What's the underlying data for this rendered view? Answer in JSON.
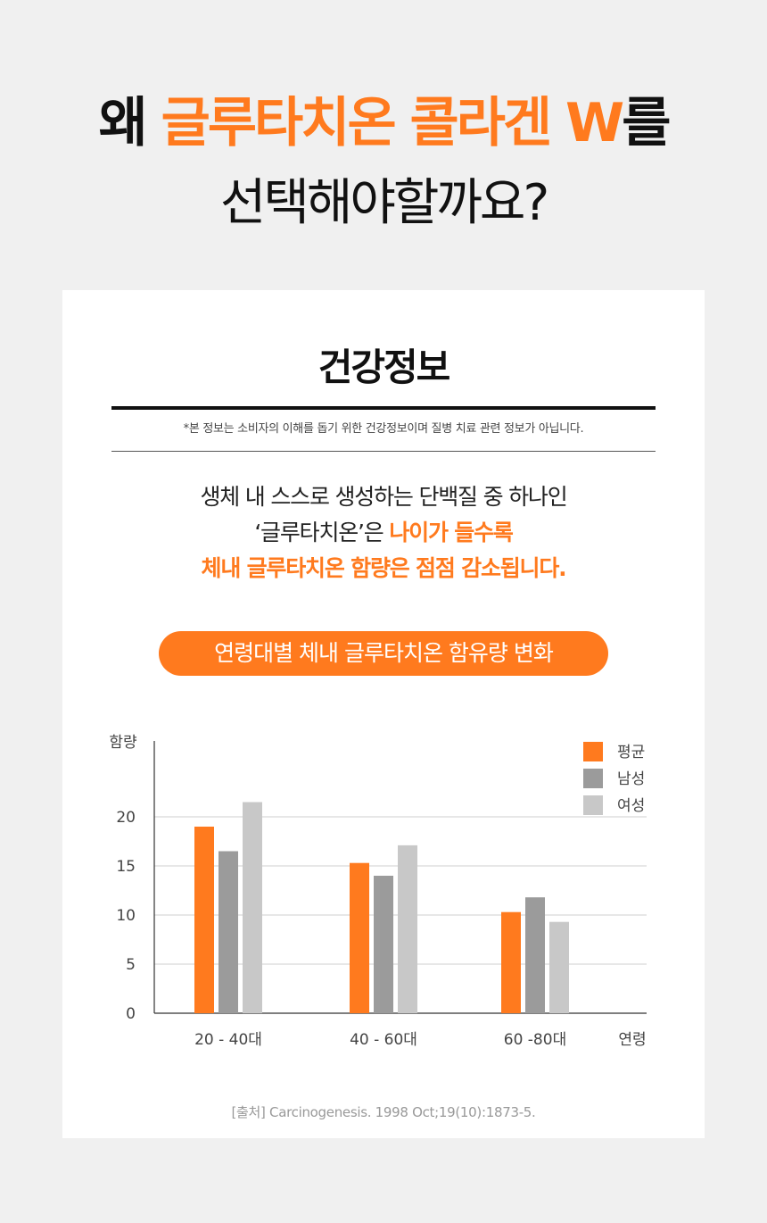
{
  "headline": {
    "line1_prefix": "왜 ",
    "line1_accent": "글루타치온 콜라겐 W",
    "line1_suffix": "를",
    "line2": "선택해야할까요?"
  },
  "card": {
    "title": "건강정보",
    "disclaimer": "*본 정보는 소비자의 이해를 돕기 위한 건강정보이며 질병 치료 관련 정보가 아닙니다.",
    "intro_line1": "생체 내 스스로 생성하는 단백질 중 하나인",
    "intro_line2_plain": "‘글루타치온’은 ",
    "intro_line2_bold": "나이가 들수록",
    "intro_line3": "체내 글루타치온 함량은 점점 감소됩니다.",
    "pill_label": "연령대별 체내 글루타치온 함유량 변화",
    "source": "[출처] Carcinogenesis. 1998 Oct;19(10):1873-5."
  },
  "colors": {
    "accent": "#ff7a1e",
    "male": "#9b9b9b",
    "female": "#c8c8c8"
  },
  "chart_data": {
    "type": "bar",
    "categories": [
      "20 - 40대",
      "40 - 60대",
      "60 -80대"
    ],
    "series": [
      {
        "name": "평균",
        "values": [
          19,
          15.3,
          10.3
        ],
        "color": "#ff7a1e"
      },
      {
        "name": "남성",
        "values": [
          16.5,
          14,
          11.8
        ],
        "color": "#9b9b9b"
      },
      {
        "name": "여성",
        "values": [
          21.5,
          17.1,
          9.3
        ],
        "color": "#c8c8c8"
      }
    ],
    "ylabel": "함량",
    "xlabel": "연령",
    "ylim": [
      0,
      25
    ],
    "yticks": [
      0,
      5,
      10,
      15,
      20
    ],
    "grid": true,
    "legend": "top-right"
  }
}
